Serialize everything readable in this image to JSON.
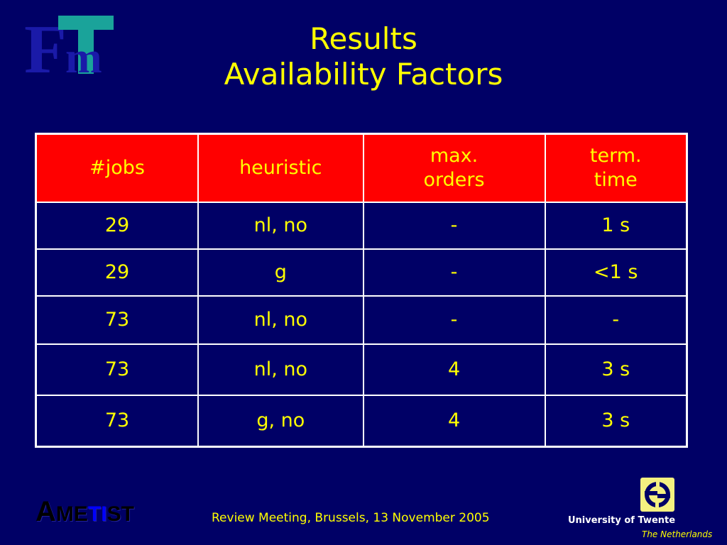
{
  "slide": {
    "title_line1": "Results",
    "title_line2": "Availability Factors"
  },
  "logos": {
    "fmt_logo_letters": "FMT",
    "ametist_logo_text": "AMETIST",
    "university": "University of Twente",
    "country": "The Netherlands"
  },
  "table": {
    "headers": [
      [
        "#jobs"
      ],
      [
        "heuristic"
      ],
      [
        "max.",
        "orders"
      ],
      [
        "term.",
        "time"
      ]
    ],
    "rows": [
      [
        "29",
        "nl, no",
        "-",
        "1 s"
      ],
      [
        "29",
        "g",
        "-",
        "<1 s"
      ],
      [
        "73",
        "nl, no",
        "-",
        "-"
      ],
      [
        "73",
        "nl, no",
        "4",
        "3 s"
      ],
      [
        "73",
        "g, no",
        "4",
        "3 s"
      ]
    ]
  },
  "footer": {
    "text": "Review Meeting, Brussels, 13 November 2005"
  },
  "colors": {
    "background": "#000066",
    "text": "#ffff00",
    "header_bg": "#ff0000",
    "grid": "#ffffff"
  }
}
